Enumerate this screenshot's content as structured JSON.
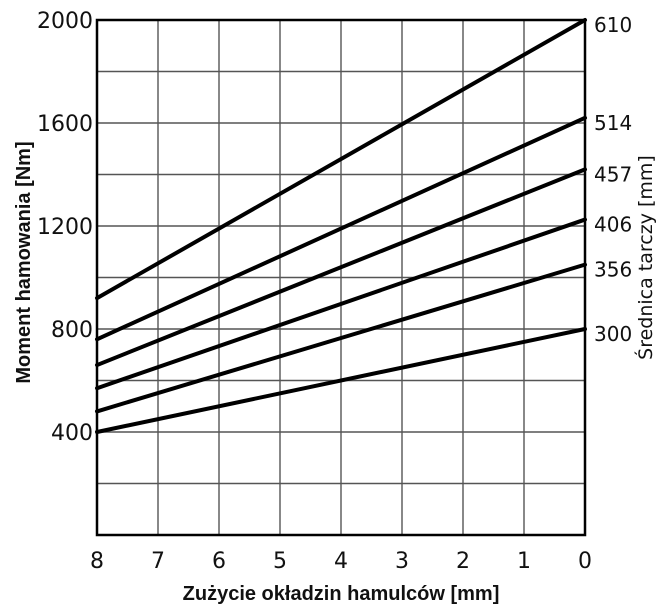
{
  "chart_data": {
    "type": "line",
    "title": "",
    "xlabel": "Zużycie okładzin hamulców [mm]",
    "ylabel": "Moment hamowania [Nm]",
    "y2label": "Średnica tarczy [mm]",
    "x_ticks": [
      "8",
      "7",
      "6",
      "5",
      "4",
      "3",
      "2",
      "1",
      "0"
    ],
    "y_ticks": [
      "400",
      "800",
      "1200",
      "1600",
      "2000"
    ],
    "xlim": [
      8,
      0
    ],
    "ylim": [
      0,
      2000
    ],
    "x_reversed": true,
    "grid": true,
    "series": [
      {
        "name": "610",
        "x": [
          8,
          0
        ],
        "y": [
          920,
          2000
        ]
      },
      {
        "name": "514",
        "x": [
          8,
          0
        ],
        "y": [
          760,
          1620
        ]
      },
      {
        "name": "457",
        "x": [
          8,
          0
        ],
        "y": [
          660,
          1420
        ]
      },
      {
        "name": "406",
        "x": [
          8,
          0
        ],
        "y": [
          570,
          1225
        ]
      },
      {
        "name": "356",
        "x": [
          8,
          0
        ],
        "y": [
          480,
          1050
        ]
      },
      {
        "name": "300",
        "x": [
          8,
          0
        ],
        "y": [
          400,
          800
        ]
      }
    ]
  }
}
